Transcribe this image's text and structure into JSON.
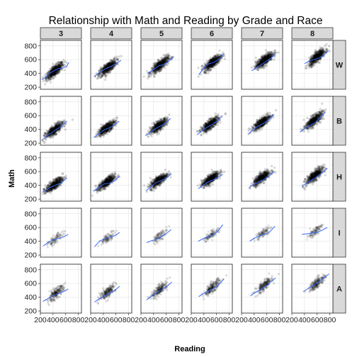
{
  "chart_data": {
    "type": "scatter",
    "title": "Relationship with Math and Reading by Grade and Race",
    "xlabel": "Reading",
    "ylabel": "Math",
    "facet_cols": [
      "3",
      "4",
      "5",
      "6",
      "7",
      "8"
    ],
    "facet_rows": [
      "W",
      "B",
      "H",
      "I",
      "A"
    ],
    "xlim": [
      200,
      850
    ],
    "ylim": [
      170,
      880
    ],
    "x_ticks": [
      200,
      400,
      600,
      800
    ],
    "x_tick_labels": [
      "200",
      "400",
      "600",
      "800"
    ],
    "y_ticks": [
      200,
      400,
      600,
      800
    ],
    "y_tick_labels": [
      "200",
      "400",
      "600",
      "800"
    ],
    "grid": true,
    "point_color": "#000000",
    "smooth_color": "#3366ff",
    "panels": [
      {
        "row": "W",
        "col": "3",
        "cloud": {
          "cx": 430,
          "cy": 440,
          "rx": 150,
          "ry": 130,
          "n": 520,
          "alpha": 0.16
        },
        "smooth": [
          [
            230,
            310
          ],
          [
            320,
            380
          ],
          [
            400,
            430
          ],
          [
            480,
            470
          ],
          [
            560,
            480
          ],
          [
            620,
            510
          ],
          [
            650,
            560
          ]
        ]
      },
      {
        "row": "W",
        "col": "4",
        "cloud": {
          "cx": 470,
          "cy": 480,
          "rx": 150,
          "ry": 130,
          "n": 520,
          "alpha": 0.16
        },
        "smooth": [
          [
            260,
            360
          ],
          [
            350,
            420
          ],
          [
            440,
            470
          ],
          [
            520,
            500
          ],
          [
            600,
            540
          ],
          [
            680,
            590
          ]
        ]
      },
      {
        "row": "W",
        "col": "5",
        "cloud": {
          "cx": 500,
          "cy": 520,
          "rx": 150,
          "ry": 130,
          "n": 520,
          "alpha": 0.16
        },
        "smooth": [
          [
            300,
            400
          ],
          [
            390,
            450
          ],
          [
            480,
            510
          ],
          [
            560,
            530
          ],
          [
            640,
            580
          ],
          [
            720,
            640
          ]
        ]
      },
      {
        "row": "W",
        "col": "6",
        "cloud": {
          "cx": 540,
          "cy": 560,
          "rx": 150,
          "ry": 130,
          "n": 520,
          "alpha": 0.16
        },
        "smooth": [
          [
            320,
            380
          ],
          [
            400,
            480
          ],
          [
            480,
            540
          ],
          [
            560,
            560
          ],
          [
            640,
            610
          ],
          [
            720,
            690
          ]
        ]
      },
      {
        "row": "W",
        "col": "7",
        "cloud": {
          "cx": 560,
          "cy": 590,
          "rx": 150,
          "ry": 130,
          "n": 520,
          "alpha": 0.16
        },
        "smooth": [
          [
            360,
            440
          ],
          [
            430,
            480
          ],
          [
            500,
            520
          ],
          [
            580,
            570
          ],
          [
            660,
            620
          ],
          [
            740,
            680
          ]
        ]
      },
      {
        "row": "W",
        "col": "8",
        "cloud": {
          "cx": 600,
          "cy": 640,
          "rx": 140,
          "ry": 130,
          "n": 520,
          "alpha": 0.16
        },
        "smooth": [
          [
            400,
            540
          ],
          [
            470,
            580
          ],
          [
            540,
            600
          ],
          [
            620,
            620
          ],
          [
            700,
            660
          ],
          [
            780,
            730
          ]
        ]
      },
      {
        "row": "B",
        "col": "3",
        "cloud": {
          "cx": 420,
          "cy": 390,
          "rx": 150,
          "ry": 120,
          "n": 480,
          "alpha": 0.16
        },
        "smooth": [
          [
            230,
            250
          ],
          [
            310,
            310
          ],
          [
            390,
            360
          ],
          [
            470,
            410
          ],
          [
            550,
            460
          ],
          [
            620,
            520
          ]
        ]
      },
      {
        "row": "B",
        "col": "4",
        "cloud": {
          "cx": 450,
          "cy": 420,
          "rx": 150,
          "ry": 120,
          "n": 480,
          "alpha": 0.16
        },
        "smooth": [
          [
            250,
            280
          ],
          [
            330,
            340
          ],
          [
            410,
            390
          ],
          [
            490,
            420
          ],
          [
            570,
            460
          ],
          [
            650,
            520
          ]
        ]
      },
      {
        "row": "B",
        "col": "5",
        "cloud": {
          "cx": 480,
          "cy": 450,
          "rx": 150,
          "ry": 120,
          "n": 480,
          "alpha": 0.16
        },
        "smooth": [
          [
            270,
            310
          ],
          [
            350,
            360
          ],
          [
            430,
            410
          ],
          [
            510,
            450
          ],
          [
            590,
            490
          ],
          [
            670,
            560
          ]
        ]
      },
      {
        "row": "B",
        "col": "6",
        "cloud": {
          "cx": 500,
          "cy": 470,
          "rx": 150,
          "ry": 120,
          "n": 480,
          "alpha": 0.16
        },
        "smooth": [
          [
            290,
            320
          ],
          [
            370,
            380
          ],
          [
            450,
            430
          ],
          [
            530,
            470
          ],
          [
            610,
            520
          ],
          [
            690,
            600
          ]
        ]
      },
      {
        "row": "B",
        "col": "7",
        "cloud": {
          "cx": 520,
          "cy": 500,
          "rx": 150,
          "ry": 120,
          "n": 480,
          "alpha": 0.16
        },
        "smooth": [
          [
            310,
            330
          ],
          [
            390,
            410
          ],
          [
            470,
            450
          ],
          [
            550,
            490
          ],
          [
            630,
            540
          ],
          [
            710,
            620
          ]
        ]
      },
      {
        "row": "B",
        "col": "8",
        "cloud": {
          "cx": 550,
          "cy": 530,
          "rx": 150,
          "ry": 130,
          "n": 480,
          "alpha": 0.16
        },
        "smooth": [
          [
            330,
            360
          ],
          [
            410,
            420
          ],
          [
            490,
            460
          ],
          [
            570,
            500
          ],
          [
            650,
            570
          ],
          [
            730,
            650
          ]
        ]
      },
      {
        "row": "H",
        "col": "3",
        "cloud": {
          "cx": 420,
          "cy": 410,
          "rx": 150,
          "ry": 120,
          "n": 460,
          "alpha": 0.16
        },
        "smooth": [
          [
            230,
            300
          ],
          [
            300,
            340
          ],
          [
            380,
            380
          ],
          [
            460,
            410
          ],
          [
            540,
            440
          ],
          [
            620,
            510
          ]
        ]
      },
      {
        "row": "H",
        "col": "4",
        "cloud": {
          "cx": 450,
          "cy": 440,
          "rx": 150,
          "ry": 120,
          "n": 460,
          "alpha": 0.16
        },
        "smooth": [
          [
            250,
            320
          ],
          [
            330,
            370
          ],
          [
            410,
            420
          ],
          [
            490,
            430
          ],
          [
            570,
            460
          ],
          [
            650,
            530
          ]
        ]
      },
      {
        "row": "H",
        "col": "5",
        "cloud": {
          "cx": 480,
          "cy": 470,
          "rx": 150,
          "ry": 120,
          "n": 460,
          "alpha": 0.16
        },
        "smooth": [
          [
            280,
            320
          ],
          [
            360,
            380
          ],
          [
            440,
            440
          ],
          [
            520,
            470
          ],
          [
            600,
            500
          ],
          [
            680,
            570
          ]
        ]
      },
      {
        "row": "H",
        "col": "6",
        "cloud": {
          "cx": 500,
          "cy": 490,
          "rx": 150,
          "ry": 120,
          "n": 460,
          "alpha": 0.16
        },
        "smooth": [
          [
            310,
            350
          ],
          [
            390,
            400
          ],
          [
            470,
            450
          ],
          [
            550,
            480
          ],
          [
            630,
            520
          ],
          [
            700,
            560
          ]
        ]
      },
      {
        "row": "H",
        "col": "7",
        "cloud": {
          "cx": 520,
          "cy": 510,
          "rx": 150,
          "ry": 120,
          "n": 460,
          "alpha": 0.16
        },
        "smooth": [
          [
            320,
            370
          ],
          [
            400,
            420
          ],
          [
            480,
            450
          ],
          [
            560,
            490
          ],
          [
            640,
            540
          ],
          [
            720,
            600
          ]
        ]
      },
      {
        "row": "H",
        "col": "8",
        "cloud": {
          "cx": 560,
          "cy": 540,
          "rx": 150,
          "ry": 130,
          "n": 460,
          "alpha": 0.16
        },
        "smooth": [
          [
            360,
            380
          ],
          [
            440,
            440
          ],
          [
            520,
            480
          ],
          [
            600,
            530
          ],
          [
            680,
            580
          ],
          [
            760,
            650
          ]
        ]
      },
      {
        "row": "I",
        "col": "3",
        "cloud": {
          "cx": 440,
          "cy": 430,
          "rx": 130,
          "ry": 110,
          "n": 90,
          "alpha": 0.12
        },
        "smooth": [
          [
            240,
            330
          ],
          [
            320,
            380
          ],
          [
            400,
            420
          ],
          [
            480,
            440
          ],
          [
            560,
            460
          ],
          [
            640,
            500
          ]
        ]
      },
      {
        "row": "I",
        "col": "4",
        "cloud": {
          "cx": 470,
          "cy": 450,
          "rx": 130,
          "ry": 110,
          "n": 90,
          "alpha": 0.12
        },
        "smooth": [
          [
            260,
            320
          ],
          [
            340,
            400
          ],
          [
            420,
            440
          ],
          [
            500,
            460
          ],
          [
            580,
            480
          ],
          [
            660,
            530
          ]
        ]
      },
      {
        "row": "I",
        "col": "5",
        "cloud": {
          "cx": 500,
          "cy": 480,
          "rx": 130,
          "ry": 110,
          "n": 90,
          "alpha": 0.12
        },
        "smooth": [
          [
            290,
            380
          ],
          [
            370,
            410
          ],
          [
            450,
            430
          ],
          [
            530,
            470
          ],
          [
            610,
            520
          ],
          [
            680,
            570
          ]
        ]
      },
      {
        "row": "I",
        "col": "6",
        "cloud": {
          "cx": 520,
          "cy": 500,
          "rx": 130,
          "ry": 110,
          "n": 90,
          "alpha": 0.12
        },
        "smooth": [
          [
            310,
            400
          ],
          [
            390,
            440
          ],
          [
            470,
            470
          ],
          [
            550,
            490
          ],
          [
            630,
            560
          ],
          [
            700,
            640
          ]
        ]
      },
      {
        "row": "I",
        "col": "7",
        "cloud": {
          "cx": 540,
          "cy": 520,
          "rx": 130,
          "ry": 110,
          "n": 90,
          "alpha": 0.12
        },
        "smooth": [
          [
            330,
            400
          ],
          [
            410,
            450
          ],
          [
            490,
            480
          ],
          [
            570,
            500
          ],
          [
            650,
            540
          ],
          [
            730,
            620
          ]
        ]
      },
      {
        "row": "I",
        "col": "8",
        "cloud": {
          "cx": 560,
          "cy": 540,
          "rx": 130,
          "ry": 110,
          "n": 90,
          "alpha": 0.12
        },
        "smooth": [
          [
            360,
            500
          ],
          [
            440,
            510
          ],
          [
            520,
            520
          ],
          [
            600,
            530
          ],
          [
            680,
            560
          ],
          [
            760,
            600
          ]
        ]
      },
      {
        "row": "A",
        "col": "3",
        "cloud": {
          "cx": 440,
          "cy": 450,
          "rx": 140,
          "ry": 130,
          "n": 180,
          "alpha": 0.14
        },
        "smooth": [
          [
            240,
            340
          ],
          [
            320,
            380
          ],
          [
            400,
            420
          ],
          [
            480,
            450
          ],
          [
            560,
            480
          ],
          [
            640,
            520
          ]
        ]
      },
      {
        "row": "A",
        "col": "4",
        "cloud": {
          "cx": 470,
          "cy": 480,
          "rx": 140,
          "ry": 130,
          "n": 180,
          "alpha": 0.14
        },
        "smooth": [
          [
            260,
            330
          ],
          [
            340,
            380
          ],
          [
            420,
            420
          ],
          [
            500,
            460
          ],
          [
            580,
            500
          ],
          [
            660,
            560
          ]
        ]
      },
      {
        "row": "A",
        "col": "5",
        "cloud": {
          "cx": 500,
          "cy": 510,
          "rx": 140,
          "ry": 130,
          "n": 180,
          "alpha": 0.14
        },
        "smooth": [
          [
            290,
            360
          ],
          [
            370,
            420
          ],
          [
            450,
            470
          ],
          [
            530,
            510
          ],
          [
            610,
            560
          ],
          [
            690,
            620
          ]
        ]
      },
      {
        "row": "A",
        "col": "6",
        "cloud": {
          "cx": 530,
          "cy": 540,
          "rx": 140,
          "ry": 130,
          "n": 180,
          "alpha": 0.14
        },
        "smooth": [
          [
            320,
            410
          ],
          [
            400,
            460
          ],
          [
            480,
            490
          ],
          [
            560,
            530
          ],
          [
            640,
            590
          ],
          [
            720,
            670
          ]
        ]
      },
      {
        "row": "A",
        "col": "7",
        "cloud": {
          "cx": 560,
          "cy": 570,
          "rx": 140,
          "ry": 130,
          "n": 180,
          "alpha": 0.14
        },
        "smooth": [
          [
            340,
            420
          ],
          [
            420,
            470
          ],
          [
            500,
            510
          ],
          [
            580,
            560
          ],
          [
            660,
            620
          ],
          [
            740,
            680
          ]
        ]
      },
      {
        "row": "A",
        "col": "8",
        "cloud": {
          "cx": 600,
          "cy": 610,
          "rx": 140,
          "ry": 130,
          "n": 180,
          "alpha": 0.14
        },
        "smooth": [
          [
            380,
            480
          ],
          [
            460,
            530
          ],
          [
            540,
            570
          ],
          [
            620,
            620
          ],
          [
            700,
            680
          ],
          [
            790,
            740
          ]
        ]
      }
    ]
  }
}
